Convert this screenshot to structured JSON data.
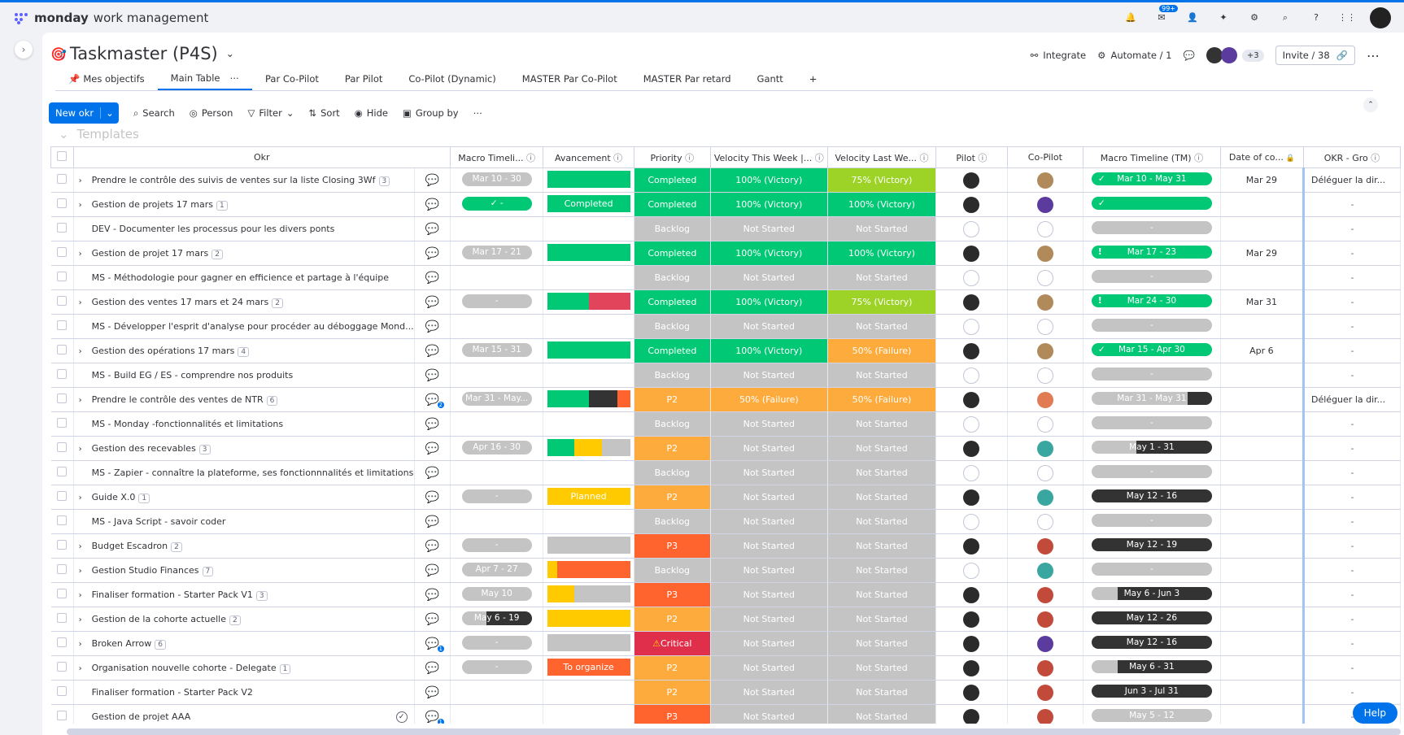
{
  "app": {
    "name_bold": "monday",
    "name_rest": "work management",
    "inbox_badge": "99+"
  },
  "board": {
    "title": "Taskmaster (P4S)",
    "integrate": "Integrate",
    "automate": "Automate / 1",
    "members_more": "+3",
    "invite": "Invite / 38",
    "tabs": [
      "Mes objectifs",
      "Main Table",
      "Par Co-Pilot",
      "Par Pilot",
      "Co-Pilot (Dynamic)",
      "MASTER Par Co-Pilot",
      "MASTER Par retard",
      "Gantt"
    ],
    "active_tab": "Main Table"
  },
  "toolbar": {
    "new_label": "New okr",
    "search": "Search",
    "person": "Person",
    "filter": "Filter",
    "sort": "Sort",
    "hide": "Hide",
    "group_by": "Group by"
  },
  "group": {
    "title": "Templates"
  },
  "columns": [
    "Okr",
    "Macro Timeli...",
    "Avancement",
    "Priority",
    "Velocity This Week |...",
    "Velocity Last We...",
    "Pilot",
    "Co-Pilot",
    "Macro Timeline (TM)",
    "Date of co...",
    "OKR - Gro"
  ],
  "colors": {
    "green": "#00c875",
    "lime": "#9cd326",
    "orange": "#fdab3d",
    "red": "#e2445c",
    "coral": "#ff642e",
    "grey": "#c4c4c4",
    "dark": "#333333",
    "yellow": "#ffcb00",
    "critical": "#df2f4a",
    "blue": "#0073ea"
  },
  "rows": [
    {
      "name": "Prendre le contrôle des suivis de ventes sur la liste Closing 3Wf",
      "count": "3",
      "expand": true,
      "upd": "plain",
      "tl": "Mar 10 - 30",
      "tl_style": "grey",
      "av": [
        [
          "green",
          1
        ]
      ],
      "av_label": "",
      "pri": "Completed",
      "pri_c": "green",
      "vtw": "100% (Victory)",
      "vtw_c": "green",
      "vlw": "75% (Victory)",
      "vlw_c": "lime",
      "pilot": "dark",
      "copilot": "photo",
      "tm": "Mar 10 - May 31",
      "tm_style": "green",
      "tm_icon": "check",
      "date": "Mar 29",
      "okr": "Déléguer la dir..."
    },
    {
      "name": "Gestion de projets 17 mars",
      "count": "1",
      "expand": true,
      "upd": "plain",
      "tl": "-",
      "tl_style": "green-check",
      "av": [
        [
          "green",
          1
        ]
      ],
      "av_label": "Completed",
      "pri": "Completed",
      "pri_c": "green",
      "vtw": "100% (Victory)",
      "vtw_c": "green",
      "vlw": "100% (Victory)",
      "vlw_c": "green",
      "pilot": "dark",
      "copilot": "purple",
      "tm": "",
      "tm_style": "green",
      "tm_icon": "check",
      "date": "",
      "okr": "-"
    },
    {
      "name": "DEV - Documenter les processus pour les divers ponts",
      "count": "",
      "expand": false,
      "upd": "plain",
      "tl": "",
      "tl_style": "none",
      "av": [],
      "av_label": "",
      "pri": "Backlog",
      "pri_c": "grey",
      "vtw": "Not Started",
      "vtw_c": "grey",
      "vlw": "Not Started",
      "vlw_c": "grey",
      "pilot": "empty",
      "copilot": "empty",
      "tm": "-",
      "tm_style": "grey",
      "tm_icon": "",
      "date": "",
      "okr": "-"
    },
    {
      "name": "Gestion de projet 17 mars",
      "count": "2",
      "expand": true,
      "upd": "plain",
      "tl": "Mar 17 - 21",
      "tl_style": "grey",
      "av": [
        [
          "green",
          1
        ]
      ],
      "av_label": "",
      "pri": "Completed",
      "pri_c": "green",
      "vtw": "100% (Victory)",
      "vtw_c": "green",
      "vlw": "100% (Victory)",
      "vlw_c": "green",
      "pilot": "dark",
      "copilot": "photo",
      "tm": "Mar 17 - 23",
      "tm_style": "green",
      "tm_icon": "excl",
      "date": "Mar 29",
      "okr": "-"
    },
    {
      "name": "MS - Méthodologie pour gagner en efficience et partage à l'équipe",
      "count": "",
      "expand": false,
      "upd": "plain",
      "tl": "",
      "tl_style": "none",
      "av": [],
      "av_label": "",
      "pri": "Backlog",
      "pri_c": "grey",
      "vtw": "Not Started",
      "vtw_c": "grey",
      "vlw": "Not Started",
      "vlw_c": "grey",
      "pilot": "empty",
      "copilot": "empty",
      "tm": "-",
      "tm_style": "grey",
      "tm_icon": "",
      "date": "",
      "okr": "-"
    },
    {
      "name": "Gestion des ventes 17 mars et 24 mars",
      "count": "2",
      "expand": true,
      "upd": "plain",
      "tl": "-",
      "tl_style": "grey",
      "av": [
        [
          "green",
          0.5
        ],
        [
          "red",
          0.5
        ]
      ],
      "av_label": "",
      "pri": "Completed",
      "pri_c": "green",
      "vtw": "100% (Victory)",
      "vtw_c": "green",
      "vlw": "75% (Victory)",
      "vlw_c": "lime",
      "pilot": "dark",
      "copilot": "photo",
      "tm": "Mar 24 - 30",
      "tm_style": "green",
      "tm_icon": "excl",
      "date": "Mar 31",
      "okr": "-"
    },
    {
      "name": "MS - Développer l'esprit d'analyse pour procéder au déboggage Mond...",
      "count": "",
      "expand": false,
      "upd": "plain",
      "tl": "",
      "tl_style": "none",
      "av": [],
      "av_label": "",
      "pri": "Backlog",
      "pri_c": "grey",
      "vtw": "Not Started",
      "vtw_c": "grey",
      "vlw": "Not Started",
      "vlw_c": "grey",
      "pilot": "empty",
      "copilot": "empty",
      "tm": "-",
      "tm_style": "grey",
      "tm_icon": "",
      "date": "",
      "okr": "-"
    },
    {
      "name": "Gestion des opérations 17 mars",
      "count": "4",
      "expand": true,
      "upd": "plain",
      "tl": "Mar 15 - 31",
      "tl_style": "grey",
      "av": [
        [
          "green",
          1
        ]
      ],
      "av_label": "",
      "pri": "Completed",
      "pri_c": "green",
      "vtw": "100% (Victory)",
      "vtw_c": "green",
      "vlw": "50% (Failure)",
      "vlw_c": "orange",
      "pilot": "dark",
      "copilot": "photo",
      "tm": "Mar 15 - Apr 30",
      "tm_style": "green",
      "tm_icon": "check",
      "date": "Apr 6",
      "okr": "-"
    },
    {
      "name": "MS - Build EG / ES - comprendre nos produits",
      "count": "",
      "expand": false,
      "upd": "plain",
      "tl": "",
      "tl_style": "none",
      "av": [],
      "av_label": "",
      "pri": "Backlog",
      "pri_c": "grey",
      "vtw": "Not Started",
      "vtw_c": "grey",
      "vlw": "Not Started",
      "vlw_c": "grey",
      "pilot": "empty",
      "copilot": "empty",
      "tm": "-",
      "tm_style": "grey",
      "tm_icon": "",
      "date": "",
      "okr": "-"
    },
    {
      "name": "Prendre le contrôle des ventes de NTR",
      "count": "6",
      "expand": true,
      "upd": "plain2",
      "tl": "Mar 31 - May...",
      "tl_style": "grey",
      "av": [
        [
          "green",
          0.5
        ],
        [
          "dark",
          0.35
        ],
        [
          "coral",
          0.15
        ]
      ],
      "av_label": "",
      "pri": "P2",
      "pri_c": "orange",
      "vtw": "50% (Failure)",
      "vtw_c": "orange",
      "vlw": "50% (Failure)",
      "vlw_c": "orange",
      "pilot": "dark",
      "copilot": "orange",
      "tm": "Mar 31 - May 31",
      "tm_style": "mix",
      "tm_icon": "",
      "date": "",
      "okr": "Déléguer la dir..."
    },
    {
      "name": "MS - Monday -fonctionnalités et limitations",
      "count": "",
      "expand": false,
      "upd": "plain",
      "tl": "",
      "tl_style": "none",
      "av": [],
      "av_label": "",
      "pri": "Backlog",
      "pri_c": "grey",
      "vtw": "Not Started",
      "vtw_c": "grey",
      "vlw": "Not Started",
      "vlw_c": "grey",
      "pilot": "empty",
      "copilot": "empty",
      "tm": "-",
      "tm_style": "grey",
      "tm_icon": "",
      "date": "",
      "okr": "-"
    },
    {
      "name": "Gestion des recevables",
      "count": "3",
      "expand": true,
      "upd": "plain",
      "tl": "Apr 16 - 30",
      "tl_style": "grey",
      "av": [
        [
          "green",
          0.33
        ],
        [
          "yellow",
          0.33
        ],
        [
          "grey",
          0.34
        ]
      ],
      "av_label": "",
      "pri": "P2",
      "pri_c": "orange",
      "vtw": "Not Started",
      "vtw_c": "grey",
      "vlw": "Not Started",
      "vlw_c": "grey",
      "pilot": "dark",
      "copilot": "teal",
      "tm": "May 1 - 31",
      "tm_style": "darkpart",
      "tm_icon": "",
      "date": "",
      "okr": "-"
    },
    {
      "name": "MS - Zapier - connaître la plateforme, ses fonctionnnalités et limitations",
      "count": "",
      "expand": false,
      "upd": "plain",
      "tl": "",
      "tl_style": "none",
      "av": [],
      "av_label": "",
      "pri": "Backlog",
      "pri_c": "grey",
      "vtw": "Not Started",
      "vtw_c": "grey",
      "vlw": "Not Started",
      "vlw_c": "grey",
      "pilot": "empty",
      "copilot": "empty",
      "tm": "-",
      "tm_style": "grey",
      "tm_icon": "",
      "date": "",
      "okr": "-"
    },
    {
      "name": "Guide X.0",
      "count": "1",
      "expand": true,
      "upd": "plain",
      "tl": "-",
      "tl_style": "grey",
      "av": [
        [
          "yellow",
          1
        ]
      ],
      "av_label": "Planned",
      "pri": "P2",
      "pri_c": "orange",
      "vtw": "Not Started",
      "vtw_c": "grey",
      "vlw": "Not Started",
      "vlw_c": "grey",
      "pilot": "dark",
      "copilot": "teal",
      "tm": "May 12 - 16",
      "tm_style": "dark",
      "tm_icon": "",
      "date": "",
      "okr": "-"
    },
    {
      "name": "MS - Java Script - savoir coder",
      "count": "",
      "expand": false,
      "upd": "plain",
      "tl": "",
      "tl_style": "none",
      "av": [],
      "av_label": "",
      "pri": "Backlog",
      "pri_c": "grey",
      "vtw": "Not Started",
      "vtw_c": "grey",
      "vlw": "Not Started",
      "vlw_c": "grey",
      "pilot": "empty",
      "copilot": "empty",
      "tm": "-",
      "tm_style": "grey",
      "tm_icon": "",
      "date": "",
      "okr": "-"
    },
    {
      "name": "Budget Escadron",
      "count": "2",
      "expand": true,
      "upd": "plain",
      "tl": "-",
      "tl_style": "grey",
      "av": [
        [
          "grey",
          1
        ]
      ],
      "av_label": "",
      "pri": "P3",
      "pri_c": "coral",
      "vtw": "Not Started",
      "vtw_c": "grey",
      "vlw": "Not Started",
      "vlw_c": "grey",
      "pilot": "dark",
      "copilot": "red",
      "tm": "May 12 - 19",
      "tm_style": "dark",
      "tm_icon": "",
      "date": "",
      "okr": "-"
    },
    {
      "name": "Gestion Studio Finances",
      "count": "7",
      "expand": true,
      "upd": "plain",
      "tl": "Apr 7 - 27",
      "tl_style": "grey",
      "av": [
        [
          "yellow",
          0.12
        ],
        [
          "coral",
          0.88
        ]
      ],
      "av_label": "",
      "pri": "Backlog",
      "pri_c": "grey",
      "vtw": "Not Started",
      "vtw_c": "grey",
      "vlw": "Not Started",
      "vlw_c": "grey",
      "pilot": "empty",
      "copilot": "teal",
      "tm": "-",
      "tm_style": "grey",
      "tm_icon": "",
      "date": "",
      "okr": "-"
    },
    {
      "name": "Finaliser formation - Starter Pack V1",
      "count": "3",
      "expand": true,
      "upd": "plain",
      "tl": "May 10",
      "tl_style": "grey",
      "av": [
        [
          "yellow",
          0.33
        ],
        [
          "grey",
          0.67
        ]
      ],
      "av_label": "",
      "pri": "P3",
      "pri_c": "coral",
      "vtw": "Not Started",
      "vtw_c": "grey",
      "vlw": "Not Started",
      "vlw_c": "grey",
      "pilot": "dark",
      "copilot": "red",
      "tm": "May 6 - Jun 3",
      "tm_style": "darkpart2",
      "tm_icon": "",
      "date": "",
      "okr": "-"
    },
    {
      "name": "Gestion de la cohorte actuelle",
      "count": "2",
      "expand": true,
      "upd": "plain",
      "tl": "May 6 - 19",
      "tl_style": "mixdark",
      "av": [
        [
          "yellow",
          1
        ]
      ],
      "av_label": "",
      "pri": "P2",
      "pri_c": "orange",
      "vtw": "Not Started",
      "vtw_c": "grey",
      "vlw": "Not Started",
      "vlw_c": "grey",
      "pilot": "dark",
      "copilot": "red",
      "tm": "May 12 - 26",
      "tm_style": "dark",
      "tm_icon": "",
      "date": "",
      "okr": "-"
    },
    {
      "name": "Broken Arrow",
      "count": "6",
      "expand": true,
      "upd": "blue",
      "tl": "-",
      "tl_style": "grey",
      "av": [
        [
          "grey",
          1
        ]
      ],
      "av_label": "",
      "pri": "Critical",
      "pri_c": "critical",
      "vtw": "Not Started",
      "vtw_c": "grey",
      "vlw": "Not Started",
      "vlw_c": "grey",
      "pilot": "dark",
      "copilot": "purple",
      "tm": "May 12 - 16",
      "tm_style": "dark",
      "tm_icon": "",
      "date": "",
      "okr": "-"
    },
    {
      "name": "Organisation nouvelle cohorte - Delegate",
      "count": "1",
      "expand": true,
      "upd": "plain",
      "tl": "-",
      "tl_style": "grey",
      "av": [
        [
          "coral",
          1
        ]
      ],
      "av_label": "To organize",
      "pri": "P2",
      "pri_c": "orange",
      "vtw": "Not Started",
      "vtw_c": "grey",
      "vlw": "Not Started",
      "vlw_c": "grey",
      "pilot": "dark",
      "copilot": "red",
      "tm": "May 6 - 31",
      "tm_style": "darkpart3",
      "tm_icon": "",
      "date": "",
      "okr": "-"
    },
    {
      "name": "Finaliser formation - Starter Pack V2",
      "count": "",
      "expand": false,
      "upd": "plain",
      "tl": "",
      "tl_style": "none",
      "av": [],
      "av_label": "",
      "pri": "P2",
      "pri_c": "orange",
      "vtw": "Not Started",
      "vtw_c": "grey",
      "vlw": "Not Started",
      "vlw_c": "grey",
      "pilot": "dark",
      "copilot": "red",
      "tm": "Jun 3 - Jul 31",
      "tm_style": "dark",
      "tm_icon": "",
      "date": "",
      "okr": "-"
    },
    {
      "name": "Gestion de projet AAA",
      "count": "",
      "expand": false,
      "upd": "blue",
      "tl": "",
      "tl_style": "none",
      "av": [],
      "av_label": "",
      "pri": "P3",
      "pri_c": "coral",
      "vtw": "Not Started",
      "vtw_c": "grey",
      "vlw": "Not Started",
      "vlw_c": "grey",
      "pilot": "dark",
      "copilot": "red",
      "tm": "May 5 - 12",
      "tm_style": "grey",
      "tm_icon": "",
      "date": "",
      "okr": "-",
      "done": true
    }
  ],
  "help": "Help"
}
